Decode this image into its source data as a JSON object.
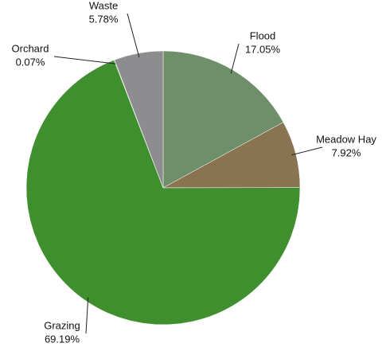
{
  "chart_data": {
    "type": "pie",
    "categories": [
      "Flood",
      "Meadow Hay",
      "Grazing",
      "Orchard",
      "Waste"
    ],
    "values": [
      17.05,
      7.92,
      69.19,
      0.07,
      5.78
    ],
    "value_labels": [
      "17.05%",
      "7.92%",
      "69.19%",
      "0.07%",
      "5.78%"
    ],
    "colors": [
      "#6f8f6a",
      "#8a7350",
      "#3f8f2e",
      "#7a8a55",
      "#8d8d8f"
    ]
  }
}
